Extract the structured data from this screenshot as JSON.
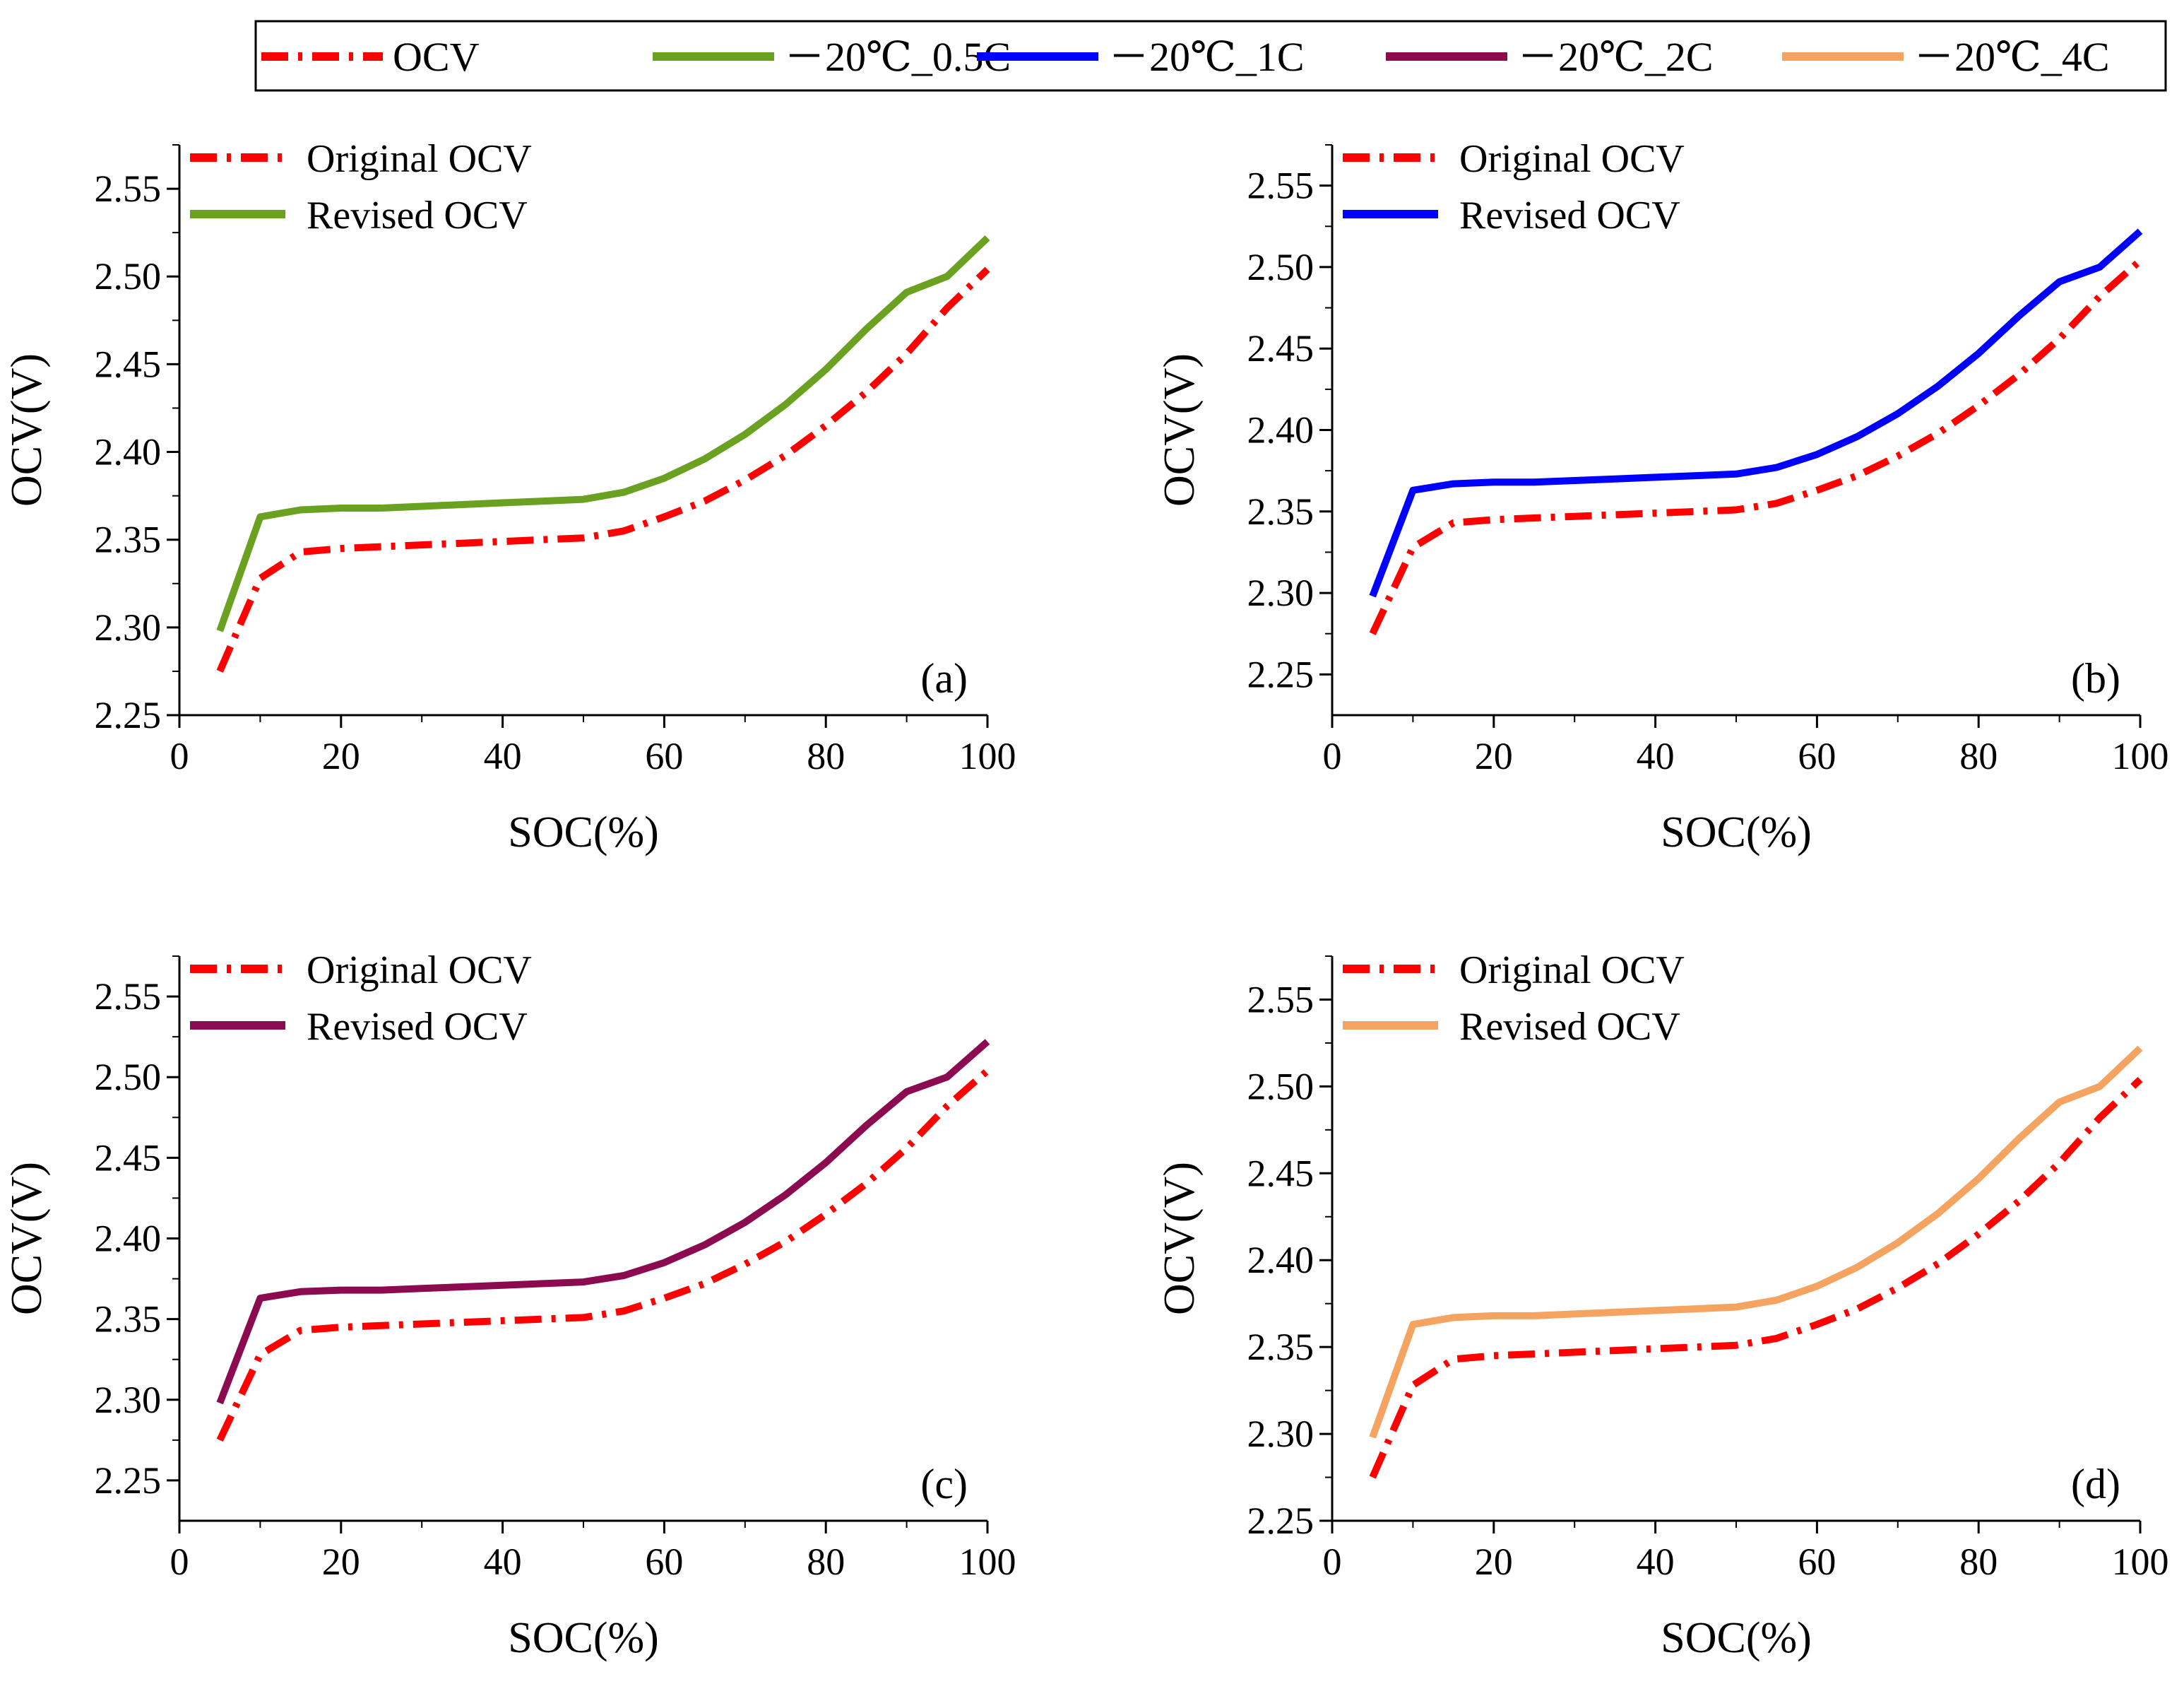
{
  "top_legend": {
    "items": [
      {
        "label": "OCV",
        "color": "#ff0000",
        "style": "dashdot"
      },
      {
        "label": "－20℃_0.5C",
        "color": "#6aa121",
        "style": "solid"
      },
      {
        "label": "－20℃_1C",
        "color": "#0000ff",
        "style": "solid"
      },
      {
        "label": "－20℃_2C",
        "color": "#8b0a50",
        "style": "solid"
      },
      {
        "label": "－20℃_4C",
        "color": "#f4a460",
        "style": "solid"
      }
    ]
  },
  "chart_data": [
    {
      "type": "line",
      "panel": "(a)",
      "xlabel": "SOC(%)",
      "ylabel": "OCV(V)",
      "xlim": [
        0,
        100
      ],
      "ylim": [
        2.25,
        2.575
      ],
      "xticks": [
        "0",
        "20",
        "40",
        "60",
        "80",
        "100"
      ],
      "yticks": [
        "2.25",
        "2.30",
        "2.35",
        "2.40",
        "2.45",
        "2.50",
        "2.55"
      ],
      "legend_position": "top-left",
      "x": [
        5,
        10,
        15,
        20,
        25,
        30,
        35,
        40,
        45,
        50,
        55,
        60,
        65,
        70,
        75,
        80,
        85,
        90,
        95,
        100
      ],
      "series": [
        {
          "name": "Original OCV",
          "color": "#ff0000",
          "style": "dashdot",
          "values": [
            2.275,
            2.328,
            2.343,
            2.345,
            2.346,
            2.347,
            2.348,
            2.349,
            2.35,
            2.351,
            2.355,
            2.363,
            2.372,
            2.384,
            2.398,
            2.415,
            2.434,
            2.456,
            2.482,
            2.504
          ]
        },
        {
          "name": "Revised OCV",
          "color": "#6aa121",
          "style": "solid",
          "values": [
            2.298,
            2.363,
            2.367,
            2.368,
            2.368,
            2.369,
            2.37,
            2.371,
            2.372,
            2.373,
            2.377,
            2.385,
            2.396,
            2.41,
            2.427,
            2.447,
            2.47,
            2.491,
            2.5,
            2.522
          ]
        }
      ]
    },
    {
      "type": "line",
      "panel": "(b)",
      "xlabel": "SOC(%)",
      "ylabel": "OCV(V)",
      "xlim": [
        0,
        100
      ],
      "ylim": [
        2.225,
        2.575
      ],
      "xticks": [
        "0",
        "20",
        "40",
        "60",
        "80",
        "100"
      ],
      "yticks": [
        "2.25",
        "2.30",
        "2.35",
        "2.40",
        "2.45",
        "2.50",
        "2.55"
      ],
      "legend_position": "top-left",
      "x": [
        5,
        10,
        15,
        20,
        25,
        30,
        35,
        40,
        45,
        50,
        55,
        60,
        65,
        70,
        75,
        80,
        85,
        90,
        95,
        100
      ],
      "series": [
        {
          "name": "Original OCV",
          "color": "#ff0000",
          "style": "dashdot",
          "values": [
            2.275,
            2.328,
            2.343,
            2.345,
            2.346,
            2.347,
            2.348,
            2.349,
            2.35,
            2.351,
            2.355,
            2.363,
            2.372,
            2.384,
            2.398,
            2.415,
            2.434,
            2.456,
            2.482,
            2.504
          ]
        },
        {
          "name": "Revised OCV",
          "color": "#0000ff",
          "style": "solid",
          "values": [
            2.298,
            2.363,
            2.367,
            2.368,
            2.368,
            2.369,
            2.37,
            2.371,
            2.372,
            2.373,
            2.377,
            2.385,
            2.396,
            2.41,
            2.427,
            2.447,
            2.47,
            2.491,
            2.5,
            2.522
          ]
        }
      ]
    },
    {
      "type": "line",
      "panel": "(c)",
      "xlabel": "SOC(%)",
      "ylabel": "OCV(V)",
      "xlim": [
        0,
        100
      ],
      "ylim": [
        2.225,
        2.575
      ],
      "xticks": [
        "0",
        "20",
        "40",
        "60",
        "80",
        "100"
      ],
      "yticks": [
        "2.25",
        "2.30",
        "2.35",
        "2.40",
        "2.45",
        "2.50",
        "2.55"
      ],
      "legend_position": "top-left",
      "x": [
        5,
        10,
        15,
        20,
        25,
        30,
        35,
        40,
        45,
        50,
        55,
        60,
        65,
        70,
        75,
        80,
        85,
        90,
        95,
        100
      ],
      "series": [
        {
          "name": "Original OCV",
          "color": "#ff0000",
          "style": "dashdot",
          "values": [
            2.275,
            2.328,
            2.343,
            2.345,
            2.346,
            2.347,
            2.348,
            2.349,
            2.35,
            2.351,
            2.355,
            2.363,
            2.372,
            2.384,
            2.398,
            2.415,
            2.434,
            2.456,
            2.482,
            2.504
          ]
        },
        {
          "name": "Revised OCV",
          "color": "#8b0a50",
          "style": "solid",
          "values": [
            2.298,
            2.363,
            2.367,
            2.368,
            2.368,
            2.369,
            2.37,
            2.371,
            2.372,
            2.373,
            2.377,
            2.385,
            2.396,
            2.41,
            2.427,
            2.447,
            2.47,
            2.491,
            2.5,
            2.522
          ]
        }
      ]
    },
    {
      "type": "line",
      "panel": "(d)",
      "xlabel": "SOC(%)",
      "ylabel": "OCV(V)",
      "xlim": [
        0,
        100
      ],
      "ylim": [
        2.25,
        2.575
      ],
      "xticks": [
        "0",
        "20",
        "40",
        "60",
        "80",
        "100"
      ],
      "yticks": [
        "2.25",
        "2.30",
        "2.35",
        "2.40",
        "2.45",
        "2.50",
        "2.55"
      ],
      "legend_position": "top-left",
      "x": [
        5,
        10,
        15,
        20,
        25,
        30,
        35,
        40,
        45,
        50,
        55,
        60,
        65,
        70,
        75,
        80,
        85,
        90,
        95,
        100
      ],
      "series": [
        {
          "name": "Original OCV",
          "color": "#ff0000",
          "style": "dashdot",
          "values": [
            2.275,
            2.328,
            2.343,
            2.345,
            2.346,
            2.347,
            2.348,
            2.349,
            2.35,
            2.351,
            2.355,
            2.363,
            2.372,
            2.384,
            2.398,
            2.415,
            2.434,
            2.456,
            2.482,
            2.504
          ]
        },
        {
          "name": "Revised OCV",
          "color": "#f4a460",
          "style": "solid",
          "values": [
            2.298,
            2.363,
            2.367,
            2.368,
            2.368,
            2.369,
            2.37,
            2.371,
            2.372,
            2.373,
            2.377,
            2.385,
            2.396,
            2.41,
            2.427,
            2.447,
            2.47,
            2.491,
            2.5,
            2.522
          ]
        }
      ]
    }
  ]
}
